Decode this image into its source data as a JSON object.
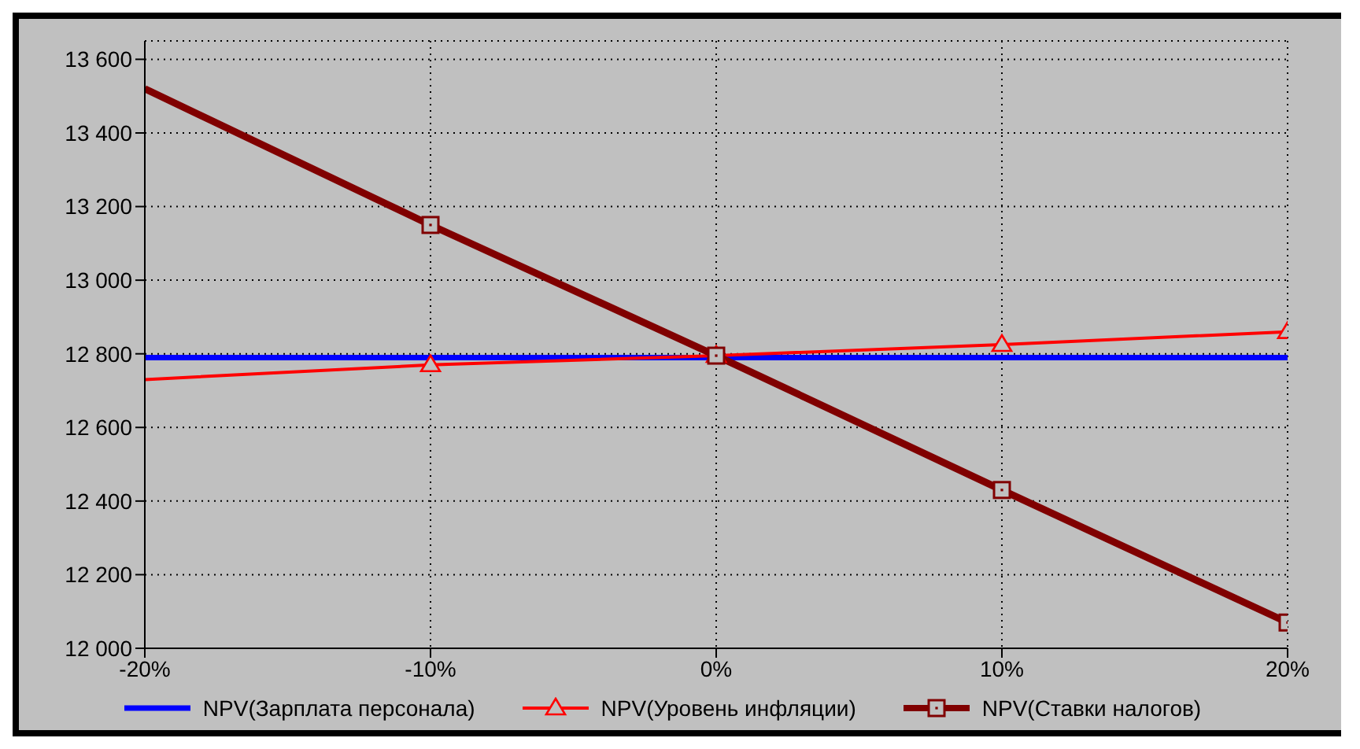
{
  "chart_data": {
    "type": "line",
    "x": [
      -20,
      -10,
      0,
      10,
      20
    ],
    "series": [
      {
        "name": "NPV(Зарплата персонала)",
        "color": "#0000ff",
        "values": [
          12790,
          12790,
          12790,
          12790,
          12790
        ],
        "marker": "none"
      },
      {
        "name": "NPV(Уровень инфляции)",
        "color": "#ff0000",
        "values": [
          12730,
          12770,
          12795,
          12825,
          12860
        ],
        "marker": "triangle"
      },
      {
        "name": "NPV(Ставки налогов)",
        "color": "#800000",
        "values": [
          13520,
          13150,
          12795,
          12430,
          12070
        ],
        "marker": "square"
      }
    ],
    "xlim": [
      -20,
      20
    ],
    "xticks": [
      {
        "value": -20,
        "label": "-20%"
      },
      {
        "value": -10,
        "label": "-10%"
      },
      {
        "value": 0,
        "label": "0%"
      },
      {
        "value": 10,
        "label": "10%"
      },
      {
        "value": 20,
        "label": "20%"
      }
    ],
    "ylim": [
      12000,
      13650
    ],
    "yticks": [
      {
        "value": 12000,
        "label": "12 000"
      },
      {
        "value": 12200,
        "label": "12 200"
      },
      {
        "value": 12400,
        "label": "12 400"
      },
      {
        "value": 12600,
        "label": "12 600"
      },
      {
        "value": 12800,
        "label": "12 800"
      },
      {
        "value": 13000,
        "label": "13 000"
      },
      {
        "value": 13200,
        "label": "13 200"
      },
      {
        "value": 13400,
        "label": "13 400"
      },
      {
        "value": 13600,
        "label": "13 600"
      }
    ],
    "grid": true,
    "legend": "bottom",
    "line_style": "solid"
  }
}
